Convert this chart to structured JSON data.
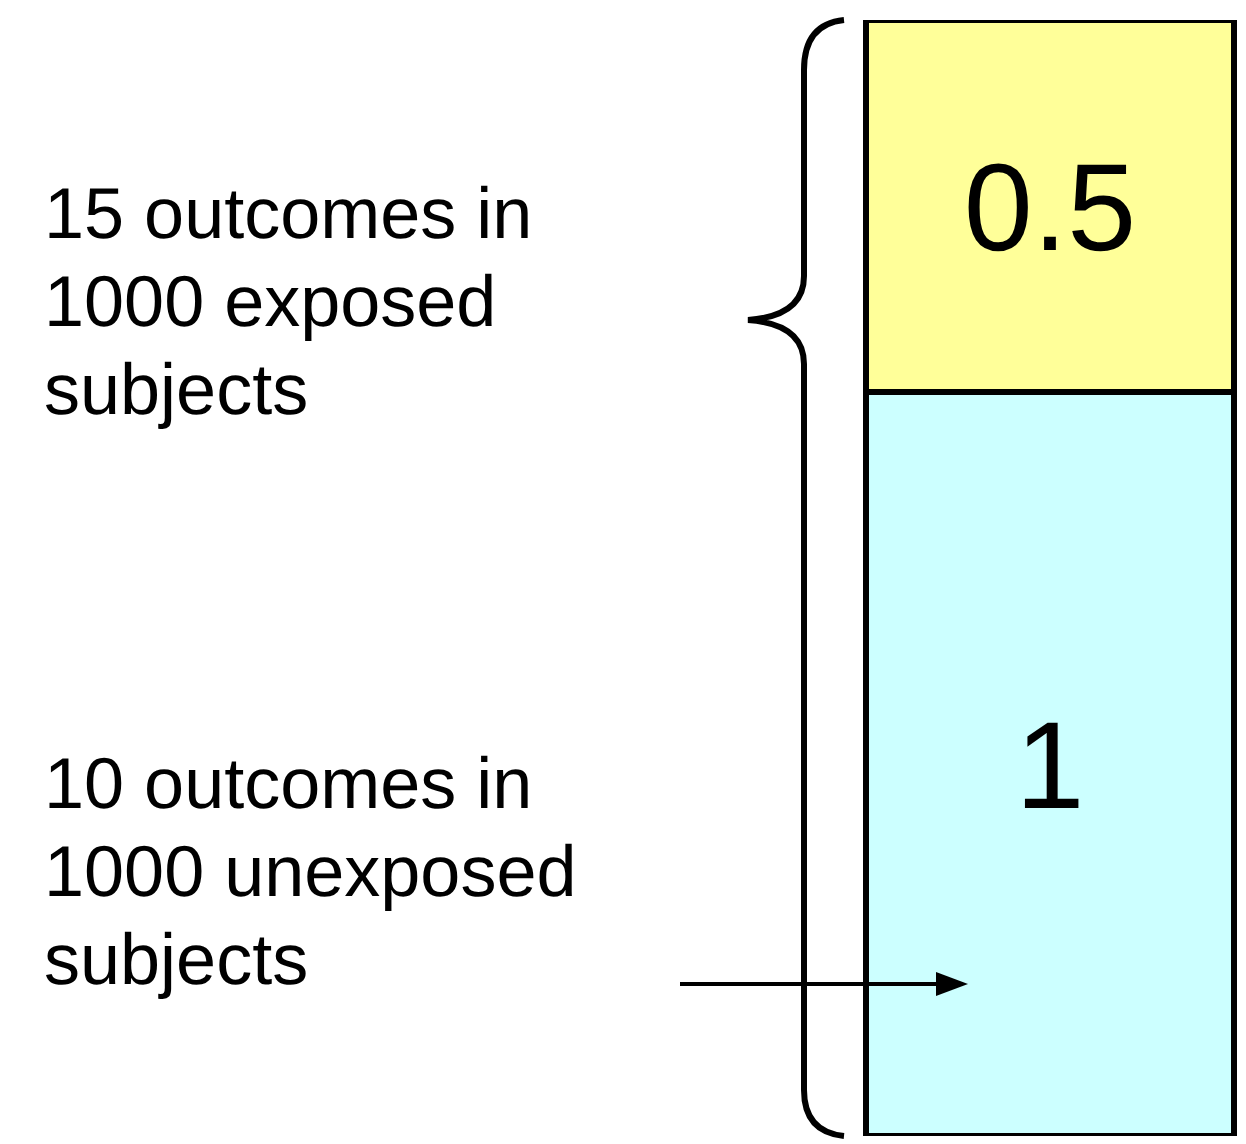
{
  "chart_data": {
    "type": "bar",
    "stacked": true,
    "categories": [
      null
    ],
    "series": [
      {
        "color": "#ccffff",
        "values": [
          1
        ]
      },
      {
        "color": "#ffff99",
        "values": [
          0.5
        ]
      }
    ],
    "data_labels": true,
    "annotations": [
      "15 outcomes in 1000 exposed subjects",
      "10 outcomes in 1000 unexposed subjects"
    ]
  }
}
